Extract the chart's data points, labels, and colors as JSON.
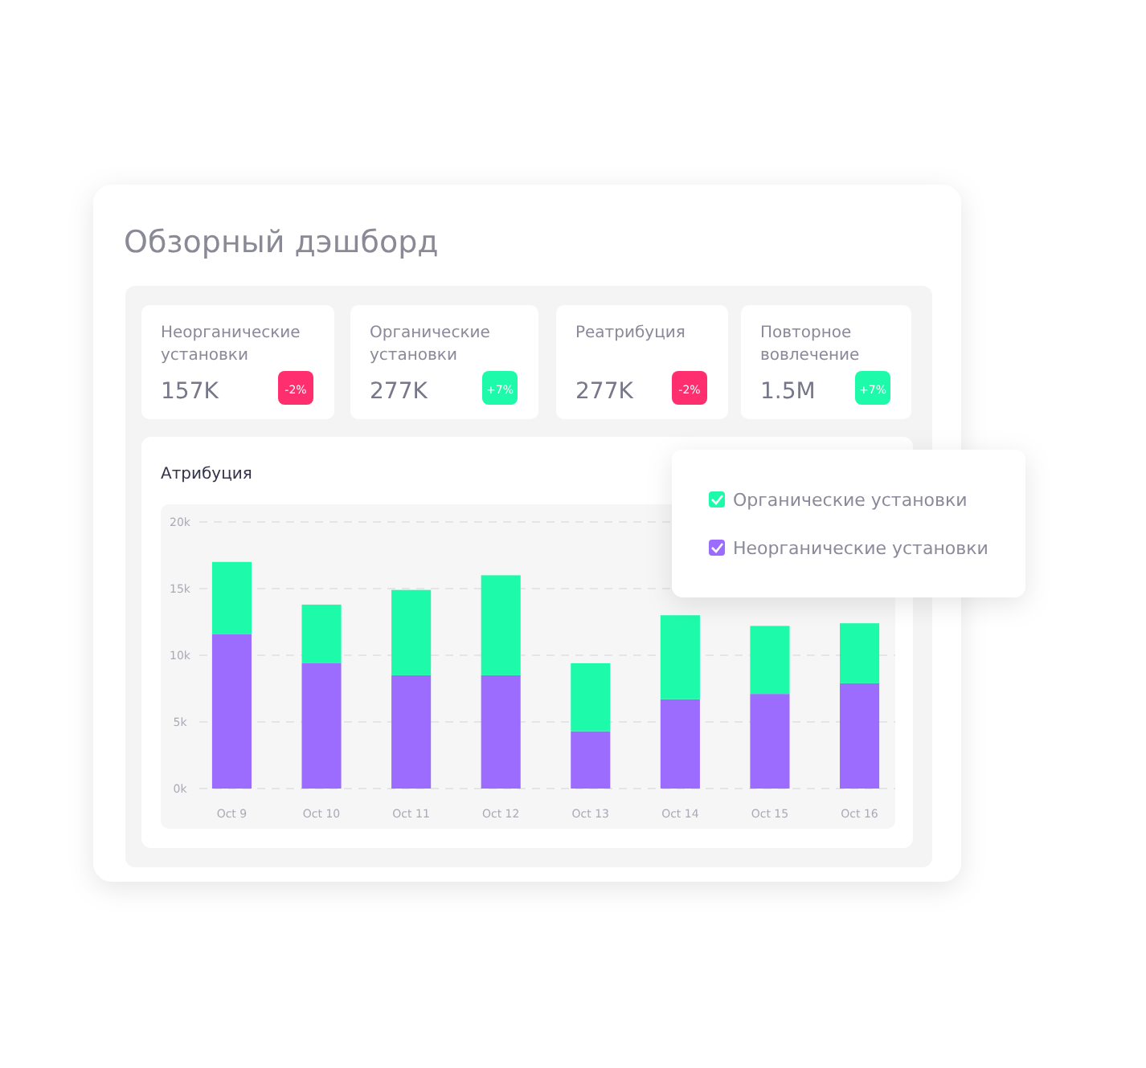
{
  "chart_data": [
    {
      "type": "other",
      "title": "Обзорный дэшборд",
      "annotations": [
        "Неорганические установки",
        "157K",
        "-2%",
        "Органические установки",
        "277K",
        "+7%",
        "Реатрибуция",
        "277K",
        "-2%",
        "Повторное вовлечение",
        "1.5M",
        "+7%"
      ],
      "colors": [
        "#ff2e6e",
        "#1dfbaa",
        "#ff2e6e",
        "#1dfbaa"
      ]
    },
    {
      "type": "bar",
      "title": "Атрибуция",
      "stacked": true,
      "categories": [
        "Oct 9",
        "Oct 10",
        "Oct 11",
        "Oct 12",
        "Oct 13",
        "Oct 14",
        "Oct 15",
        "Oct 16"
      ],
      "series": [
        {
          "name": "Неорганические установки",
          "color": "#9b6cfd",
          "values": [
            11.6,
            9.4,
            8.5,
            8.5,
            4.3,
            6.7,
            7.1,
            7.9
          ]
        },
        {
          "name": "Органические установки",
          "color": "#1dfbaa",
          "values": [
            5.4,
            4.4,
            6.4,
            7.5,
            5.1,
            6.3,
            5.1,
            4.5
          ]
        }
      ],
      "ylim": [
        0,
        20
      ],
      "yticks": [
        {
          "value": 0,
          "label": "0k"
        },
        {
          "value": 5,
          "label": "5k"
        },
        {
          "value": 10,
          "label": "10k"
        },
        {
          "value": 15,
          "label": "15k"
        },
        {
          "value": 20,
          "label": "20k"
        }
      ],
      "grid": "y",
      "legend": "top right"
    }
  ]
}
